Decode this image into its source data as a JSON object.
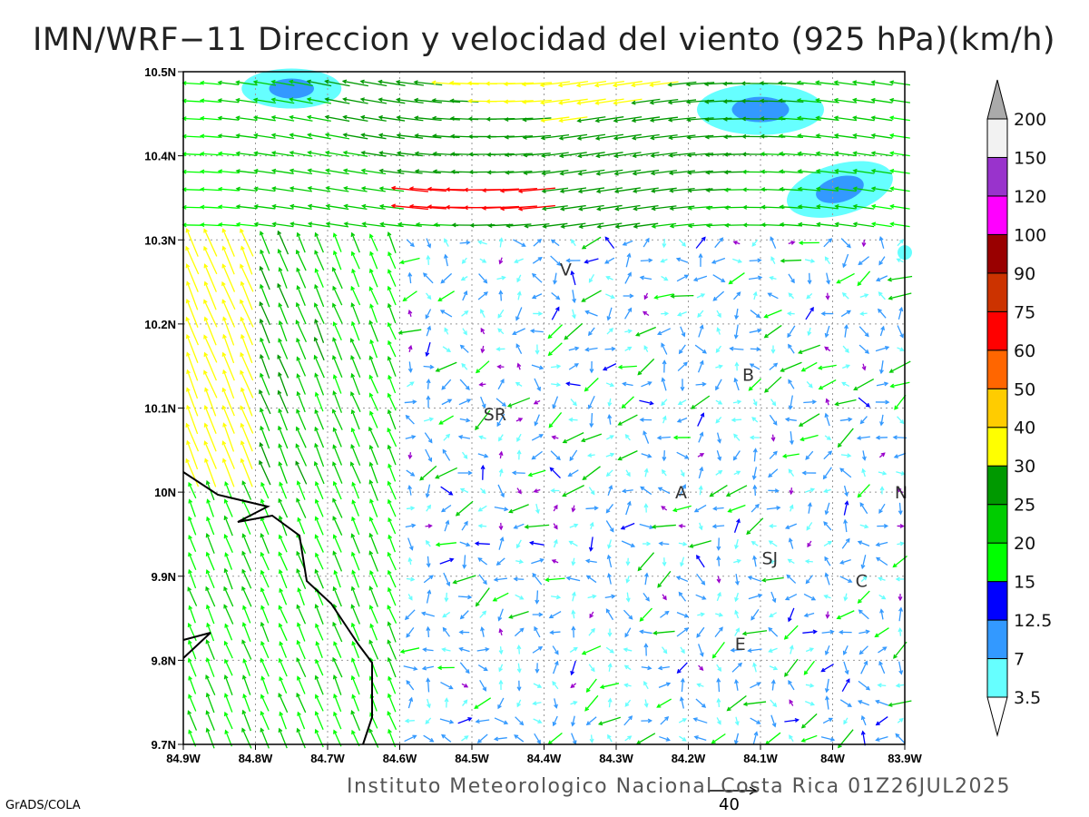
{
  "title": "IMN/WRF−11 Direccion y velocidad del viento (925 hPa)(km/h)",
  "credit": "Instituto Meteorologico Nacional Costa Rica 01Z26JUL2025",
  "software": "GrADS/COLA",
  "reference_vector_label": "40",
  "map": {
    "lon_range": [
      -84.9,
      -83.9
    ],
    "lat_range": [
      9.7,
      10.5
    ],
    "x_ticks": [
      "84.9W",
      "84.8W",
      "84.7W",
      "84.6W",
      "84.5W",
      "84.4W",
      "84.3W",
      "84.2W",
      "84.1W",
      "84W",
      "83.9W"
    ],
    "y_ticks": [
      "10.5N",
      "10.4N",
      "10.3N",
      "10.2N",
      "10.1N",
      "10N",
      "9.9N",
      "9.8N",
      "9.7N"
    ],
    "cities": [
      {
        "label": "V",
        "lon": -84.37,
        "lat": 10.265
      },
      {
        "label": "SR",
        "lon": -84.468,
        "lat": 10.093
      },
      {
        "label": "B",
        "lon": -84.117,
        "lat": 10.14
      },
      {
        "label": "A",
        "lon": -84.21,
        "lat": 10.0
      },
      {
        "label": "SJ",
        "lon": -84.087,
        "lat": 9.922
      },
      {
        "label": "C",
        "lon": -83.96,
        "lat": 9.895
      },
      {
        "label": "E",
        "lon": -84.128,
        "lat": 9.82
      },
      {
        "label": "N",
        "lon": -83.905,
        "lat": 10.0
      }
    ]
  },
  "colorbar": {
    "levels": [
      "3.5",
      "7",
      "12.5",
      "15",
      "20",
      "25",
      "30",
      "40",
      "50",
      "60",
      "75",
      "90",
      "100",
      "120",
      "150",
      "200"
    ],
    "colors": [
      "#66ffff",
      "#3399ff",
      "#0000ff",
      "#00ff00",
      "#00cc00",
      "#009900",
      "#ffff00",
      "#ffcc00",
      "#ff6600",
      "#ff0000",
      "#cc3300",
      "#990000",
      "#ff00ff",
      "#9933cc",
      "#f2f2f2"
    ],
    "low_cap": "#ffffff",
    "high_cap": "#aaaaaa"
  }
}
